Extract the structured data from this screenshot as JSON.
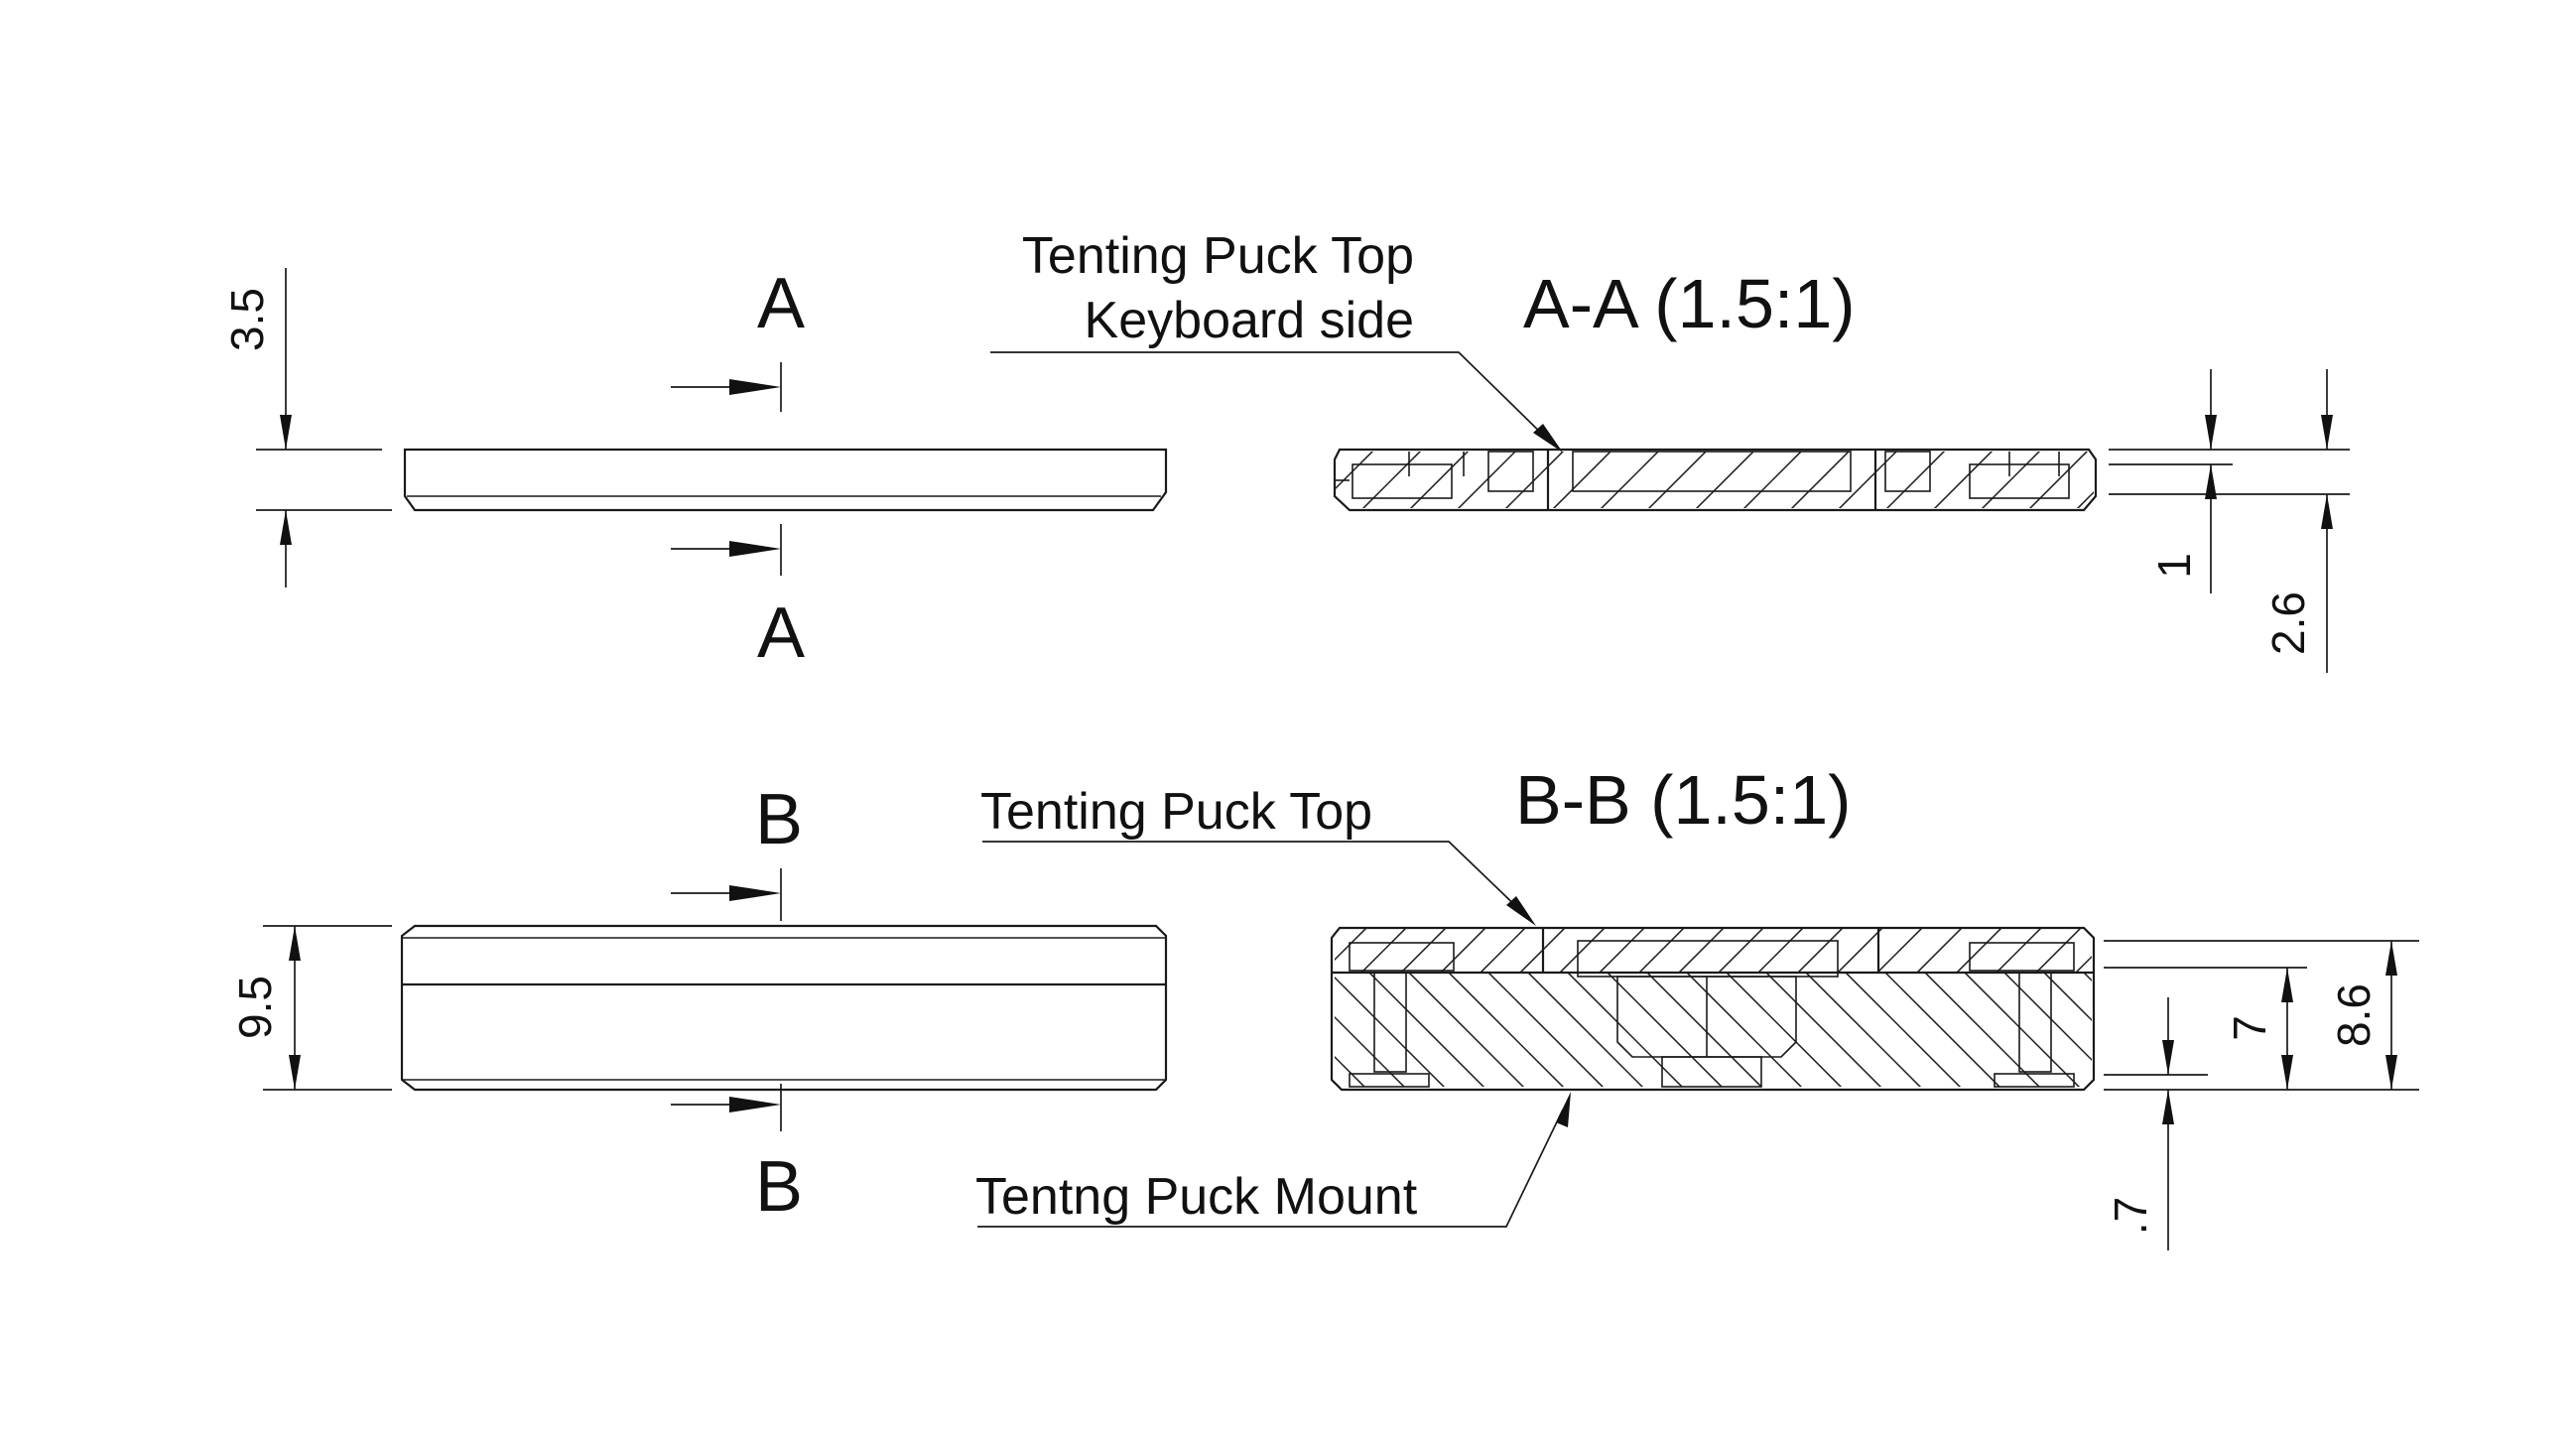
{
  "views": {
    "left_a": {
      "dim_height": "3.5",
      "section_label_top": "A",
      "section_label_bottom": "A"
    },
    "left_b": {
      "dim_height": "9.5",
      "section_label_top": "B",
      "section_label_bottom": "B"
    },
    "section_a": {
      "title": "A-A (1.5:1)",
      "callout_line1": "Tenting Puck Top",
      "callout_line2": "Keyboard side",
      "dim_1": "1",
      "dim_2": "2.6"
    },
    "section_b": {
      "title": "B-B (1.5:1)",
      "callout_top": "Tenting Puck Top",
      "callout_bottom": "Tentng  Puck Mount",
      "dim_7": "7",
      "dim_86": "8.6",
      "dim_07": ".7"
    }
  }
}
